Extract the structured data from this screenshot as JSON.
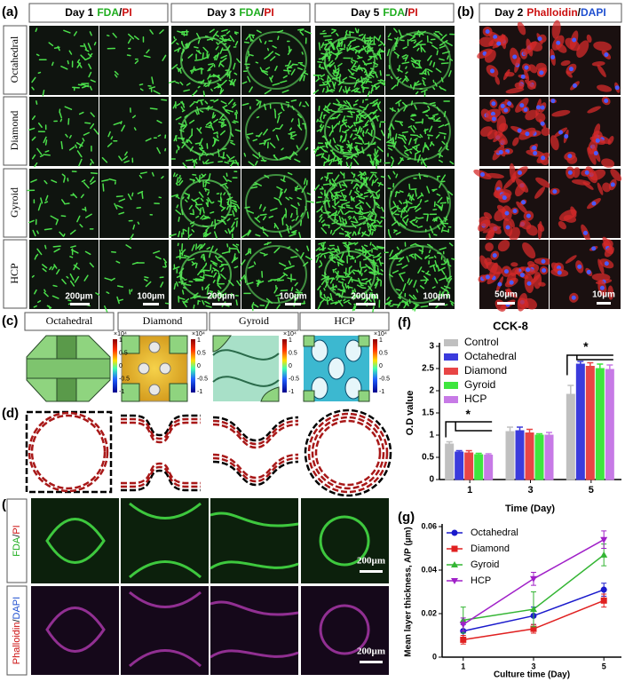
{
  "panel_labels": [
    "(a)",
    "(b)",
    "(c)",
    "(d)",
    "(e)",
    "(f)",
    "(g)"
  ],
  "panel_a": {
    "headers": [
      {
        "day": "Day 1",
        "stain1": "FDA",
        "sep": "/",
        "stain2": "PI"
      },
      {
        "day": "Day 3",
        "stain1": "FDA",
        "sep": "/",
        "stain2": "PI"
      },
      {
        "day": "Day 5",
        "stain1": "FDA",
        "sep": "/",
        "stain2": "PI"
      }
    ],
    "rows": [
      "Octahedral",
      "Diamond",
      "Gyroid",
      "HCP"
    ],
    "scale_bars": [
      "200µm",
      "100µm"
    ]
  },
  "panel_b": {
    "header": {
      "day": "Day 2",
      "stain1": "Phalloidin",
      "sep": "/",
      "stain2": "DAPI"
    },
    "scale_bars": [
      "50µm",
      "10µm"
    ]
  },
  "panel_c": {
    "headers": [
      "Octahedral",
      "Diamond",
      "Gyroid",
      "HCP"
    ],
    "colorbar_label": "×10⁴",
    "colorbar_ticks": [
      "1",
      "0.5",
      "0",
      "-0.5",
      "-1"
    ]
  },
  "panel_e": {
    "row1": {
      "stain1": "FDA",
      "sep": "/",
      "stain2": "PI"
    },
    "row2": {
      "stain1": "Phalloidin",
      "sep": "/",
      "stain2": "DAPI"
    },
    "scale_bar": "200µm"
  },
  "chart_data": [
    {
      "type": "bar",
      "title": "CCK-8",
      "x_label": "Time (Day)",
      "y_label": "O.D value",
      "categories": [
        "1",
        "3",
        "5"
      ],
      "series": [
        {
          "name": "Control",
          "color": "#c0c0c0",
          "values": [
            0.8,
            1.08,
            1.92
          ],
          "errors": [
            0.05,
            0.1,
            0.2
          ]
        },
        {
          "name": "Octahedral",
          "color": "#3b3bdc",
          "values": [
            0.62,
            1.1,
            2.6
          ],
          "errors": [
            0.03,
            0.08,
            0.06
          ]
        },
        {
          "name": "Diamond",
          "color": "#e84545",
          "values": [
            0.6,
            1.05,
            2.55
          ],
          "errors": [
            0.05,
            0.08,
            0.08
          ]
        },
        {
          "name": "Gyroid",
          "color": "#3ee63e",
          "values": [
            0.56,
            1.0,
            2.5
          ],
          "errors": [
            0.03,
            0.03,
            0.1
          ]
        },
        {
          "name": "HCP",
          "color": "#c77ae6",
          "values": [
            0.55,
            1.0,
            2.48
          ],
          "errors": [
            0.03,
            0.06,
            0.1
          ]
        }
      ],
      "annotations": [
        "*",
        "*"
      ],
      "ylim": [
        0,
        3
      ],
      "yticks": [
        0,
        0.5,
        1,
        1.5,
        2,
        2.5,
        3
      ],
      "legend": "upper-left"
    },
    {
      "type": "line",
      "x_label": "Culture time (Day)",
      "y_label": "Mean layer thickness, A/P (µm)",
      "x": [
        1,
        3,
        5
      ],
      "series": [
        {
          "name": "Octahedral",
          "color": "#1a1acc",
          "marker": "circle",
          "values": [
            0.012,
            0.019,
            0.031
          ],
          "errors": [
            0.003,
            0.004,
            0.003
          ]
        },
        {
          "name": "Diamond",
          "color": "#e02020",
          "marker": "square",
          "values": [
            0.008,
            0.013,
            0.026
          ],
          "errors": [
            0.002,
            0.002,
            0.003
          ]
        },
        {
          "name": "Gyroid",
          "color": "#33b533",
          "marker": "triangle-up",
          "values": [
            0.017,
            0.022,
            0.047
          ],
          "errors": [
            0.006,
            0.008,
            0.005
          ]
        },
        {
          "name": "HCP",
          "color": "#a020c8",
          "marker": "triangle-down",
          "values": [
            0.015,
            0.036,
            0.054
          ],
          "errors": [
            0.003,
            0.003,
            0.004
          ]
        }
      ],
      "xlim": [
        0.4,
        5.5
      ],
      "xticks": [
        1,
        3,
        5
      ],
      "ylim": [
        0,
        0.06
      ],
      "yticks": [
        0,
        0.02,
        0.04,
        0.06
      ],
      "legend": "upper-left"
    }
  ]
}
